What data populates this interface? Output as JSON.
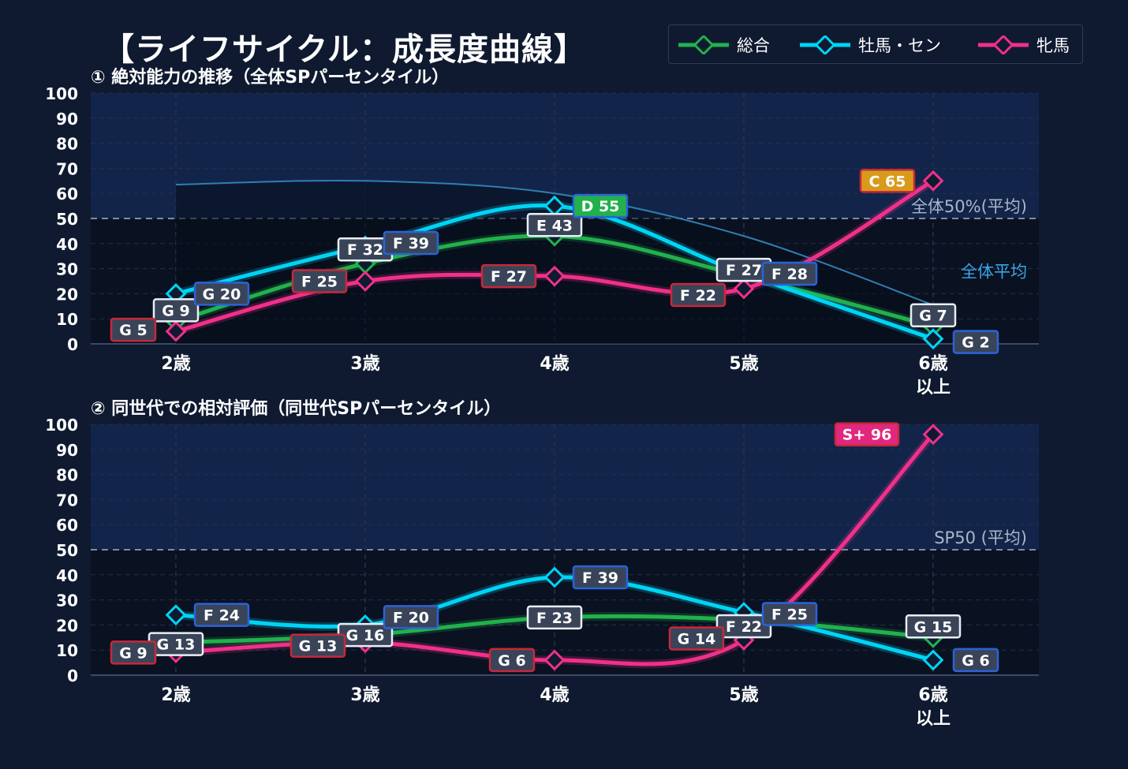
{
  "title": "【ライフサイクル：成長度曲線】",
  "legend": [
    {
      "label": "総合",
      "color": "#22b14c"
    },
    {
      "label": "牡馬・セン",
      "color": "#00d4f5"
    },
    {
      "label": "牝馬",
      "color": "#f0308a"
    }
  ],
  "chart_data": [
    {
      "type": "line",
      "title": "① 絶対能力の推移（全体SPパーセンタイル）",
      "categories": [
        "2歳",
        "3歳",
        "4歳",
        "5歳",
        "6歳\n以上"
      ],
      "ylim": [
        0,
        100
      ],
      "yticks": [
        0,
        10,
        20,
        30,
        40,
        50,
        60,
        70,
        80,
        90,
        100
      ],
      "grid": true,
      "legend": "top-right",
      "reference_line": {
        "value": 50,
        "label": "全体50%(平均)"
      },
      "average_curve": {
        "label": "全体平均",
        "values": [
          63.5,
          65,
          60,
          43,
          15.5
        ]
      },
      "series": [
        {
          "name": "総合",
          "color": "#22b14c",
          "values": [
            9,
            32,
            43,
            27,
            7
          ],
          "labels": [
            "G 9",
            "F 32",
            "E 43",
            "F 27",
            "G 7"
          ]
        },
        {
          "name": "牡馬・セン",
          "color": "#00d4f5",
          "values": [
            20,
            39,
            55,
            28,
            2
          ],
          "labels": [
            "G 20",
            "F 39",
            "D 55",
            "F 28",
            "G 2"
          ]
        },
        {
          "name": "牝馬",
          "color": "#f0308a",
          "values": [
            5,
            25,
            27,
            22,
            65
          ],
          "labels": [
            "G 5",
            "F 25",
            "F 27",
            "F 22",
            "C 65"
          ]
        }
      ]
    },
    {
      "type": "line",
      "title": "② 同世代での相対評価（同世代SPパーセンタイル）",
      "categories": [
        "2歳",
        "3歳",
        "4歳",
        "5歳",
        "6歳\n以上"
      ],
      "ylim": [
        0,
        100
      ],
      "yticks": [
        0,
        10,
        20,
        30,
        40,
        50,
        60,
        70,
        80,
        90,
        100
      ],
      "grid": true,
      "reference_line": {
        "value": 50,
        "label": "SP50 (平均)"
      },
      "series": [
        {
          "name": "総合",
          "color": "#22b14c",
          "values": [
            13,
            16,
            23,
            22,
            15
          ],
          "labels": [
            "G 13",
            "G 16",
            "F 23",
            "F 22",
            "G 15"
          ]
        },
        {
          "name": "牡馬・セン",
          "color": "#00d4f5",
          "values": [
            24,
            20,
            39,
            25,
            6
          ],
          "labels": [
            "F 24",
            "F 20",
            "F 39",
            "F 25",
            "G 6"
          ]
        },
        {
          "name": "牝馬",
          "color": "#f0308a",
          "values": [
            9,
            13,
            6,
            14,
            96
          ],
          "labels": [
            "G 9",
            "G 13",
            "G 6",
            "G 14",
            "S+ 96"
          ]
        }
      ]
    }
  ]
}
